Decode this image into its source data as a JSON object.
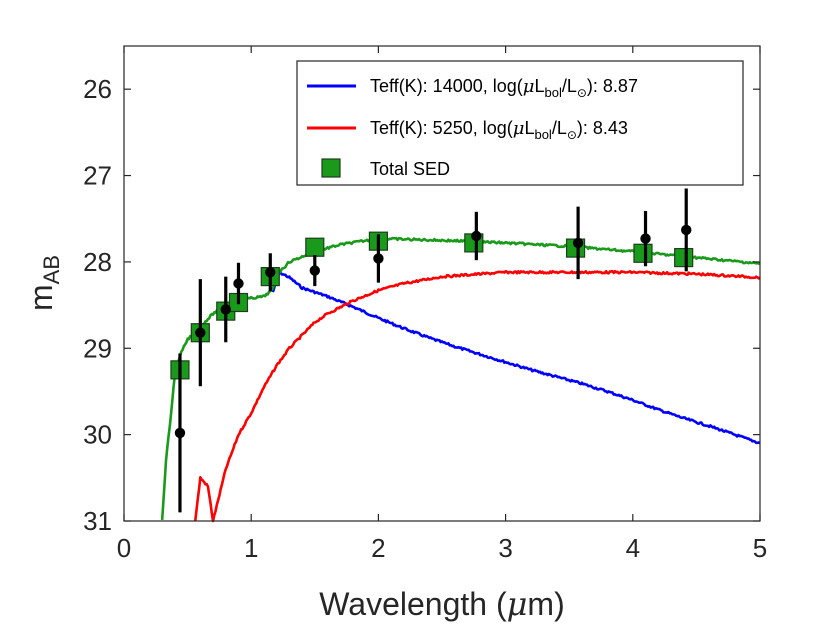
{
  "chart_data": {
    "type": "line",
    "title": "",
    "xlabel_main": "Wavelength (",
    "xlabel_mu": "μ",
    "xlabel_unit": "m)",
    "ylabel_main": "m",
    "ylabel_sub": "AB",
    "xlim": [
      0,
      5
    ],
    "ylim": [
      31,
      25.5
    ],
    "y_reversed": true,
    "xticks": [
      "0",
      "1",
      "2",
      "3",
      "4",
      "5"
    ],
    "yticks": [
      "26",
      "27",
      "28",
      "29",
      "30",
      "31"
    ],
    "xtick_values": [
      0,
      1,
      2,
      3,
      4,
      5
    ],
    "ytick_values": [
      26,
      27,
      28,
      29,
      30,
      31
    ],
    "grid": false,
    "legend_position": "top-right",
    "legend": [
      {
        "id": "hot",
        "color": "#0000ff",
        "marker": "line",
        "pre": "Teff(K): 14000, log(",
        "mu": "μ",
        "mid": "L",
        "bol": "bol",
        "slash": "/L",
        "sun": "⊙",
        "post": "): 8.87"
      },
      {
        "id": "cool",
        "color": "#ff0000",
        "marker": "line",
        "pre": "Teff(K): 5250, log(",
        "mu": "μ",
        "mid": "L",
        "bol": "bol",
        "slash": "/L",
        "sun": "⊙",
        "post": "): 8.43"
      },
      {
        "id": "total",
        "color": "#1a9a1a",
        "marker": "square",
        "label": "Total SED"
      }
    ],
    "series": [
      {
        "name": "Teff 14000 K",
        "color": "#0000ff",
        "x": [
          1.17,
          1.22,
          1.3,
          1.4,
          1.5,
          1.6,
          1.8,
          2.0,
          2.2,
          2.4,
          2.6,
          2.8,
          3.0,
          3.2,
          3.4,
          3.6,
          3.8,
          4.0,
          4.2,
          4.4,
          4.6,
          4.8,
          5.0
        ],
        "y": [
          28.35,
          28.12,
          28.18,
          28.3,
          28.35,
          28.4,
          28.52,
          28.65,
          28.77,
          28.88,
          28.98,
          29.07,
          29.16,
          29.25,
          29.33,
          29.41,
          29.5,
          29.6,
          29.71,
          29.81,
          29.9,
          30.0,
          30.1
        ]
      },
      {
        "name": "Teff 5250 K",
        "color": "#ff0000",
        "x": [
          0.56,
          0.6,
          0.66,
          0.7,
          0.8,
          0.9,
          1.0,
          1.1,
          1.2,
          1.3,
          1.4,
          1.5,
          1.6,
          1.8,
          2.0,
          2.2,
          2.5,
          3.0,
          3.5,
          4.0,
          4.5,
          5.0
        ],
        "y": [
          31.0,
          30.5,
          30.6,
          31.0,
          30.4,
          30.0,
          29.75,
          29.45,
          29.2,
          29.0,
          28.85,
          28.7,
          28.6,
          28.45,
          28.33,
          28.25,
          28.17,
          28.12,
          28.12,
          28.12,
          28.14,
          28.18
        ]
      },
      {
        "name": "Total SED",
        "color": "#1a9a1a",
        "x": [
          0.3,
          0.33,
          0.36,
          0.4,
          0.45,
          0.5,
          0.6,
          0.7,
          0.8,
          0.9,
          1.0,
          1.1,
          1.17,
          1.2,
          1.3,
          1.5,
          1.7,
          2.0,
          2.5,
          3.0,
          3.5,
          4.0,
          4.5,
          5.0
        ],
        "y": [
          31.0,
          30.3,
          29.9,
          29.3,
          29.05,
          28.9,
          28.75,
          28.6,
          28.5,
          28.45,
          28.42,
          28.4,
          28.32,
          28.15,
          28.0,
          27.88,
          27.8,
          27.73,
          27.75,
          27.78,
          27.82,
          27.88,
          27.95,
          28.02
        ]
      }
    ],
    "total_sed_markers": {
      "x": [
        0.44,
        0.6,
        0.8,
        0.9,
        1.15,
        1.5,
        2.0,
        2.75,
        3.55,
        4.08,
        4.4
      ],
      "y": [
        29.25,
        28.82,
        28.57,
        28.47,
        28.17,
        27.83,
        27.76,
        27.78,
        27.84,
        27.9,
        27.95
      ]
    },
    "observations": {
      "x": [
        0.44,
        0.6,
        0.8,
        0.9,
        1.15,
        1.5,
        2.0,
        2.77,
        3.57,
        4.1,
        4.42
      ],
      "y": [
        29.98,
        28.82,
        28.55,
        28.25,
        28.12,
        28.1,
        27.96,
        27.7,
        27.78,
        27.73,
        27.63
      ],
      "yerr": [
        0.92,
        0.62,
        0.38,
        0.24,
        0.22,
        0.18,
        0.28,
        0.28,
        0.42,
        0.32,
        0.48
      ]
    }
  }
}
